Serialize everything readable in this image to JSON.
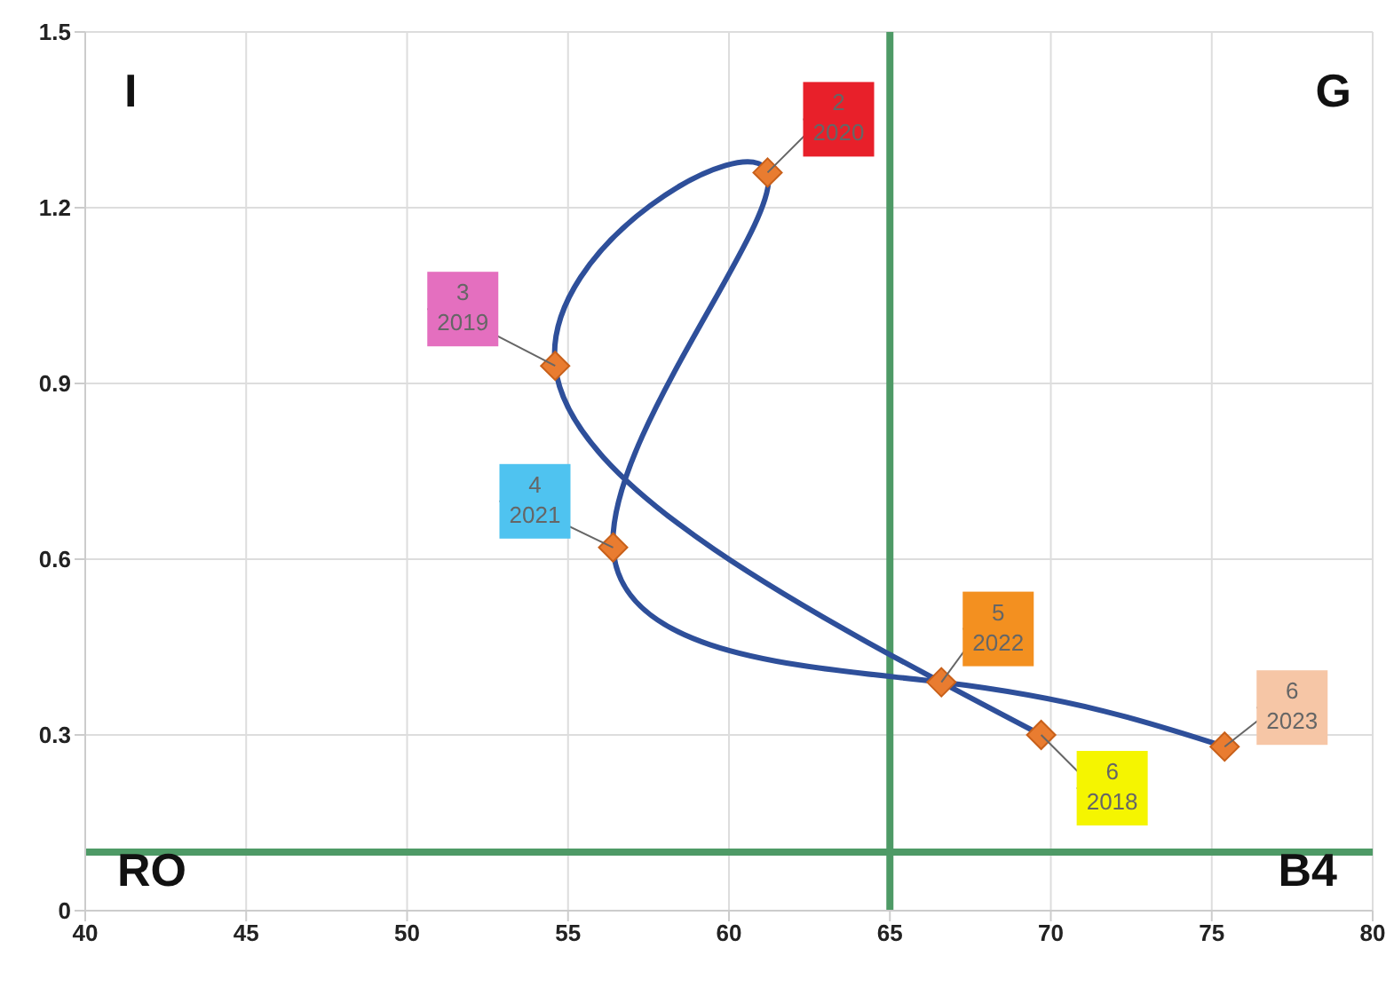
{
  "chart_data": {
    "type": "scatter",
    "xlim": [
      40,
      80
    ],
    "xticks": [
      40,
      45,
      50,
      55,
      60,
      65,
      70,
      75,
      80
    ],
    "ylim": [
      0,
      1.5
    ],
    "yticks": [
      0,
      0.3,
      0.6,
      0.9,
      1.2,
      1.5
    ],
    "grid": true,
    "legend": false,
    "series": [
      {
        "type": "line",
        "color": "#2e4f9a",
        "marker": "none",
        "x": [
          69.7,
          54.6,
          61.2,
          56.4,
          66.6,
          75.4
        ],
        "values": [
          0.3,
          0.93,
          1.26,
          0.62,
          0.39,
          0.28
        ]
      },
      {
        "color": "#e97c30",
        "marker": "diamond",
        "x": [
          69.7,
          54.6,
          61.2,
          56.4,
          66.6,
          75.4
        ],
        "values": [
          0.3,
          0.93,
          1.26,
          0.62,
          0.39,
          0.28
        ]
      }
    ],
    "ref_lines": [
      {
        "axis": "x",
        "value": 65,
        "label": null,
        "color": "#4e9a66"
      },
      {
        "axis": "y",
        "value": 0.1,
        "label": null,
        "color": "#4e9a66"
      }
    ],
    "annotations": [
      {
        "text": "6\n2018",
        "x": 69.7,
        "y": 0.3
      },
      {
        "text": "3\n2019",
        "x": 54.6,
        "y": 0.93
      },
      {
        "text": "2\n2020",
        "x": 61.2,
        "y": 1.26
      },
      {
        "text": "4\n2021",
        "x": 56.4,
        "y": 0.62
      },
      {
        "text": "5\n2022",
        "x": 66.6,
        "y": 0.39
      },
      {
        "text": "6\n2023",
        "x": 75.4,
        "y": 0.28
      },
      "I",
      "G",
      "RO",
      "B4"
    ]
  }
}
